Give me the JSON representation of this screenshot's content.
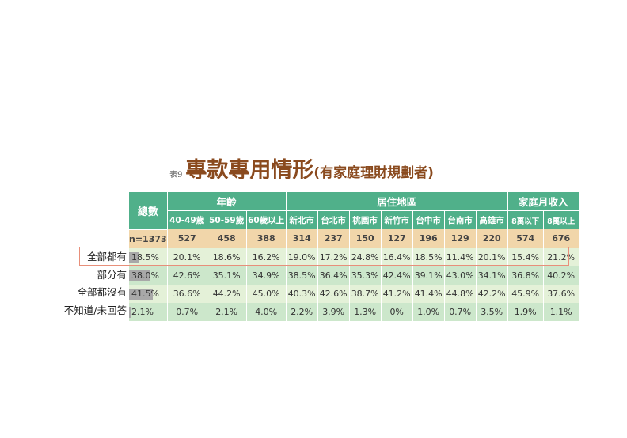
{
  "title": {
    "number": "表9",
    "main": "專款專用情形",
    "sub": "(有家庭理財規劃者)"
  },
  "table": {
    "total_header": "總數",
    "groups": [
      {
        "label": "年齡",
        "cols": [
          "40-49歲",
          "50-59歲",
          "60歲以上"
        ]
      },
      {
        "label": "居住地區",
        "cols": [
          "新北市",
          "台北市",
          "桃園市",
          "新竹市",
          "台中市",
          "台南市",
          "高雄市"
        ]
      },
      {
        "label": "家庭月收入",
        "cols": [
          "8萬以下",
          "8萬以上"
        ]
      }
    ],
    "n_row": [
      "n=1373",
      "527",
      "458",
      "388",
      "314",
      "237",
      "150",
      "127",
      "196",
      "129",
      "220",
      "574",
      "676"
    ],
    "rows": [
      {
        "label": "全部都有",
        "total": "18.5%",
        "bar_pct": 18.5,
        "values": [
          "20.1%",
          "18.6%",
          "16.2%",
          "19.0%",
          "17.2%",
          "24.8%",
          "16.4%",
          "18.5%",
          "11.4%",
          "20.1%",
          "15.4%",
          "21.2%"
        ],
        "highlighted": true
      },
      {
        "label": "部分有",
        "total": "38.0%",
        "bar_pct": 38.0,
        "values": [
          "42.6%",
          "35.1%",
          "34.9%",
          "38.5%",
          "36.4%",
          "35.3%",
          "42.4%",
          "39.1%",
          "43.0%",
          "34.1%",
          "36.8%",
          "40.2%"
        ]
      },
      {
        "label": "全部都沒有",
        "total": "41.5%",
        "bar_pct": 41.5,
        "values": [
          "36.6%",
          "44.2%",
          "45.0%",
          "40.3%",
          "42.6%",
          "38.7%",
          "41.2%",
          "41.4%",
          "44.8%",
          "42.2%",
          "45.9%",
          "37.6%"
        ]
      },
      {
        "label": "不知道/未回答",
        "total": "2.1%",
        "bar_pct": 2.1,
        "values": [
          "0.7%",
          "2.1%",
          "4.0%",
          "2.2%",
          "3.9%",
          "1.3%",
          "0%",
          "1.0%",
          "0.7%",
          "3.5%",
          "1.9%",
          "1.1%"
        ]
      }
    ]
  },
  "colors": {
    "header": "#50b08a",
    "n_row": "#f1d6aa",
    "row_light": "#e4f1d8",
    "row_dark": "#cce7cb",
    "title": "#8a4a1e",
    "highlight": "#e88f7a"
  }
}
